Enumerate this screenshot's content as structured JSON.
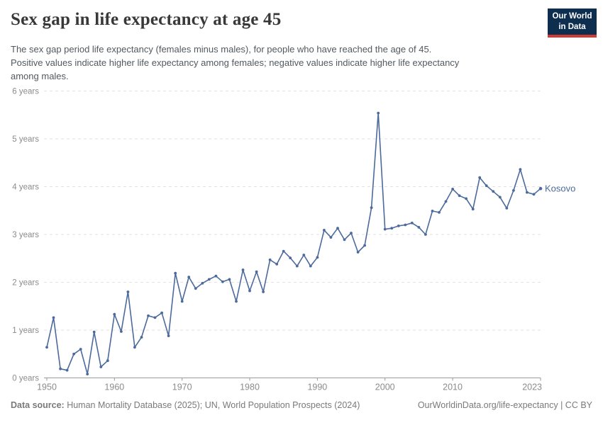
{
  "header": {
    "title": "Sex gap in life expectancy at age 45",
    "subtitle_lines": [
      "The sex gap period life expectancy (females minus males), for people who have reached the age of 45.",
      "Positive values indicate higher life expectancy among females; negative values indicate higher life expectancy",
      "among males."
    ],
    "logo": {
      "line1": "Our World",
      "line2": "in Data"
    }
  },
  "footer": {
    "source_label": "Data source:",
    "source_text": " Human Mortality Database (2025); UN, World Population Prospects (2024)",
    "link_text": "OurWorldinData.org/life-expectancy | CC BY"
  },
  "chart_data": {
    "type": "line",
    "title": "Sex gap in life expectancy at age 45",
    "xlabel": "",
    "ylabel": "years",
    "xlim": [
      1950,
      2023
    ],
    "ylim": [
      0,
      6
    ],
    "grid": "horizontal-dashed",
    "legend_position": "end-of-line-label",
    "x_ticks": [
      1950,
      1960,
      1970,
      1980,
      1990,
      2000,
      2010,
      2023
    ],
    "y_ticks": [
      0,
      1,
      2,
      3,
      4,
      5,
      6
    ],
    "y_tick_labels": [
      "0 years",
      "1 years",
      "2 years",
      "3 years",
      "4 years",
      "5 years",
      "6 years"
    ],
    "x": [
      1950,
      1951,
      1952,
      1953,
      1954,
      1955,
      1956,
      1957,
      1958,
      1959,
      1960,
      1961,
      1962,
      1963,
      1964,
      1965,
      1966,
      1967,
      1968,
      1969,
      1970,
      1971,
      1972,
      1973,
      1974,
      1975,
      1976,
      1977,
      1978,
      1979,
      1980,
      1981,
      1982,
      1983,
      1984,
      1985,
      1986,
      1987,
      1988,
      1989,
      1990,
      1991,
      1992,
      1993,
      1994,
      1995,
      1996,
      1997,
      1998,
      1999,
      2000,
      2001,
      2002,
      2003,
      2004,
      2005,
      2006,
      2007,
      2008,
      2009,
      2010,
      2011,
      2012,
      2013,
      2014,
      2015,
      2016,
      2017,
      2018,
      2019,
      2020,
      2021,
      2022,
      2023
    ],
    "series": [
      {
        "name": "Kosovo",
        "values": [
          0.64,
          1.26,
          0.19,
          0.16,
          0.5,
          0.6,
          0.08,
          0.96,
          0.23,
          0.36,
          1.33,
          0.97,
          1.8,
          0.64,
          0.85,
          1.3,
          1.26,
          1.36,
          0.88,
          2.19,
          1.6,
          2.11,
          1.87,
          1.98,
          2.06,
          2.13,
          2.01,
          2.06,
          1.6,
          2.26,
          1.82,
          2.22,
          1.8,
          2.47,
          2.38,
          2.65,
          2.51,
          2.34,
          2.57,
          2.34,
          2.52,
          3.09,
          2.94,
          3.13,
          2.89,
          3.03,
          2.63,
          2.77,
          3.56,
          5.54,
          3.11,
          3.13,
          3.18,
          3.2,
          3.24,
          3.15,
          3.0,
          3.49,
          3.46,
          3.69,
          3.95,
          3.81,
          3.75,
          3.53,
          4.19,
          4.02,
          3.9,
          3.78,
          3.55,
          3.92,
          4.36,
          3.88,
          3.84,
          3.96
        ]
      }
    ],
    "colors": {
      "line": "#4c6a9c",
      "entity_label": "#4c6a9c",
      "gridline": "#e2e2e2",
      "axis": "#999999",
      "tick_text": "#8b8b8b"
    }
  }
}
